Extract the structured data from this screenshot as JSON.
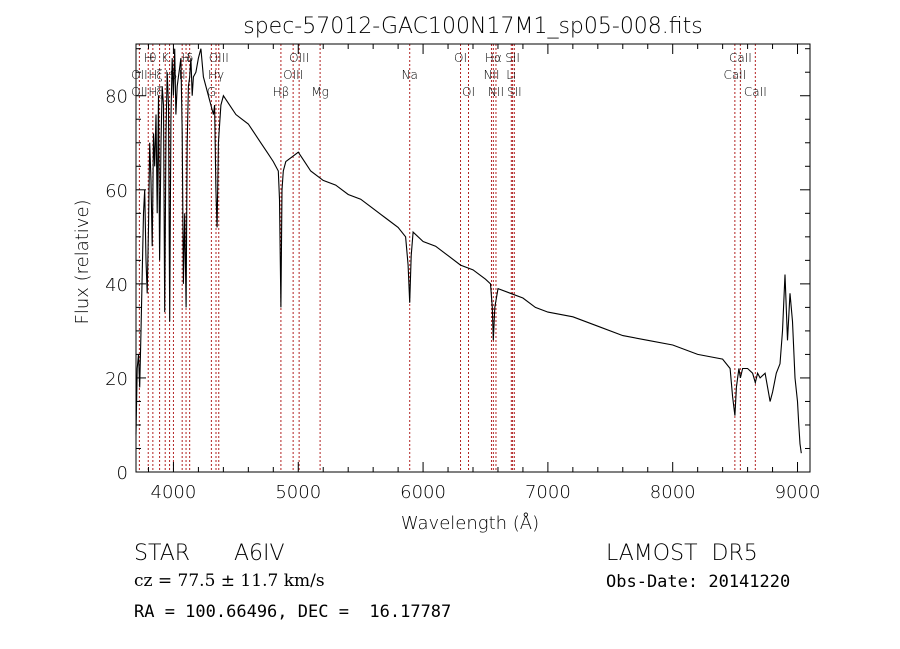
{
  "chart_data": {
    "type": "line",
    "title": "spec-57012-GAC100N17M1_sp05-008.fits",
    "xlabel": "Wavelength (Å)",
    "ylabel": "Flux (relative)",
    "xlim": [
      3700,
      9100
    ],
    "ylim": [
      0,
      91
    ],
    "x_ticks": [
      4000,
      5000,
      6000,
      7000,
      8000,
      9000
    ],
    "y_ticks": [
      0,
      20,
      40,
      60,
      80
    ],
    "grid": false,
    "line_color": "#000000",
    "marker_color": "#b22222",
    "series": [
      {
        "x": [
          3700,
          3710,
          3720,
          3730,
          3740,
          3750,
          3760,
          3770,
          3780,
          3790,
          3800,
          3810,
          3820,
          3830,
          3835,
          3840,
          3850,
          3860,
          3870,
          3880,
          3889,
          3900,
          3910,
          3920,
          3930,
          3940,
          3950,
          3960,
          3970,
          3980,
          3990,
          4000,
          4010,
          4020,
          4030,
          4040,
          4050,
          4060,
          4070,
          4080,
          4090,
          4101,
          4110,
          4120,
          4130,
          4140,
          4150,
          4160,
          4180,
          4200,
          4220,
          4240,
          4260,
          4280,
          4300,
          4320,
          4330,
          4340,
          4350,
          4360,
          4380,
          4400,
          4450,
          4500,
          4550,
          4600,
          4650,
          4700,
          4750,
          4800,
          4840,
          4850,
          4861,
          4870,
          4880,
          4900,
          4950,
          5000,
          5050,
          5100,
          5200,
          5300,
          5400,
          5500,
          5600,
          5700,
          5800,
          5860,
          5880,
          5893,
          5905,
          5920,
          6000,
          6100,
          6200,
          6300,
          6400,
          6500,
          6540,
          6555,
          6563,
          6575,
          6600,
          6700,
          6800,
          6900,
          7000,
          7200,
          7400,
          7600,
          7800,
          8000,
          8200,
          8400,
          8460,
          8480,
          8498,
          8510,
          8530,
          8542,
          8560,
          8600,
          8640,
          8662,
          8680,
          8700,
          8740,
          8780,
          8800,
          8830,
          8860,
          8880,
          8900,
          8920,
          8940,
          8960,
          8980,
          9000,
          9010,
          9020,
          9030
        ],
        "y": [
          8,
          22,
          25,
          18,
          30,
          42,
          55,
          60,
          45,
          38,
          52,
          70,
          62,
          48,
          58,
          72,
          65,
          76,
          55,
          80,
          45,
          70,
          82,
          78,
          34,
          72,
          85,
          78,
          32,
          75,
          88,
          80,
          90,
          76,
          82,
          84,
          86,
          88,
          72,
          40,
          55,
          35,
          70,
          82,
          84,
          88,
          80,
          84,
          85,
          88,
          90,
          84,
          82,
          80,
          78,
          76,
          78,
          60,
          52,
          70,
          78,
          80,
          78,
          76,
          75,
          74,
          72,
          70,
          68,
          66,
          64,
          58,
          35,
          60,
          64,
          66,
          67,
          68,
          66,
          64,
          62,
          61,
          59,
          58,
          56,
          54,
          52,
          50,
          44,
          36,
          46,
          51,
          49,
          48,
          46,
          44,
          43,
          41,
          40,
          35,
          28,
          35,
          39,
          38,
          37,
          35,
          34,
          33,
          31,
          29,
          28,
          27,
          25,
          24,
          22,
          16,
          12,
          18,
          22,
          20,
          22,
          22,
          21,
          19,
          21,
          20,
          21,
          15,
          17,
          21,
          23,
          30,
          42,
          28,
          38,
          32,
          20,
          15,
          10,
          6,
          4
        ]
      }
    ],
    "lines": [
      {
        "wavelength": 3727,
        "row1": "",
        "row2": "OII",
        "row3": "OII"
      },
      {
        "wavelength": 3798,
        "row1": "H",
        "row2": "",
        "row3": ""
      },
      {
        "wavelength": 3835,
        "row1": "θ",
        "row2": "H",
        "row3": "H"
      },
      {
        "wavelength": 3889,
        "row1": "",
        "row2": "ξ",
        "row3": "ξ"
      },
      {
        "wavelength": 3934,
        "row1": "K",
        "row2": "",
        "row3": ""
      },
      {
        "wavelength": 3969,
        "row1": "",
        "row2": "H",
        "row3": ""
      },
      {
        "wavelength": 4000,
        "row1": "",
        "row2": "S",
        "row3": ""
      },
      {
        "wavelength": 4070,
        "row1": "",
        "row2": "II",
        "row3": ""
      },
      {
        "wavelength": 4101,
        "row1": "H",
        "row2": "",
        "row3": ""
      },
      {
        "wavelength": 4130,
        "row1": "δ",
        "row2": "",
        "row3": ""
      },
      {
        "wavelength": 4304,
        "row1": "",
        "row2": "",
        "row3": "G"
      },
      {
        "wavelength": 4341,
        "row1": "",
        "row2": "Hγ",
        "row3": ""
      },
      {
        "wavelength": 4363,
        "row1": "OIII",
        "row2": "",
        "row3": ""
      },
      {
        "wavelength": 4861,
        "row1": "",
        "row2": "",
        "row3": "Hβ"
      },
      {
        "wavelength": 4959,
        "row1": "",
        "row2": "OIII",
        "row3": ""
      },
      {
        "wavelength": 5007,
        "row1": "OIII",
        "row2": "",
        "row3": ""
      },
      {
        "wavelength": 5175,
        "row1": "",
        "row2": "",
        "row3": "Mg"
      },
      {
        "wavelength": 5893,
        "row1": "",
        "row2": "Na",
        "row3": ""
      },
      {
        "wavelength": 6300,
        "row1": "OI",
        "row2": "",
        "row3": ""
      },
      {
        "wavelength": 6364,
        "row1": "",
        "row2": "",
        "row3": "OI"
      },
      {
        "wavelength": 6548,
        "row1": "",
        "row2": "NII",
        "row3": ""
      },
      {
        "wavelength": 6563,
        "row1": "Hα",
        "row2": "",
        "row3": ""
      },
      {
        "wavelength": 6584,
        "row1": "",
        "row2": "",
        "row3": "NII"
      },
      {
        "wavelength": 6707,
        "row1": "",
        "row2": "Li",
        "row3": ""
      },
      {
        "wavelength": 6717,
        "row1": "SII",
        "row2": "",
        "row3": ""
      },
      {
        "wavelength": 6731,
        "row1": "",
        "row2": "",
        "row3": "SII"
      },
      {
        "wavelength": 8498,
        "row1": "",
        "row2": "CaII",
        "row3": ""
      },
      {
        "wavelength": 8542,
        "row1": "CaII",
        "row2": "",
        "row3": ""
      },
      {
        "wavelength": 8662,
        "row1": "",
        "row2": "",
        "row3": "CaII"
      }
    ]
  },
  "info": {
    "class": "STAR",
    "subclass": "A6IV",
    "survey": "LAMOST  DR5",
    "cz": "cz = 77.5 ± 11.7 km/s",
    "obs_date": "Obs-Date: 20141220",
    "coords": "RA = 100.66496, DEC =  16.17787"
  }
}
